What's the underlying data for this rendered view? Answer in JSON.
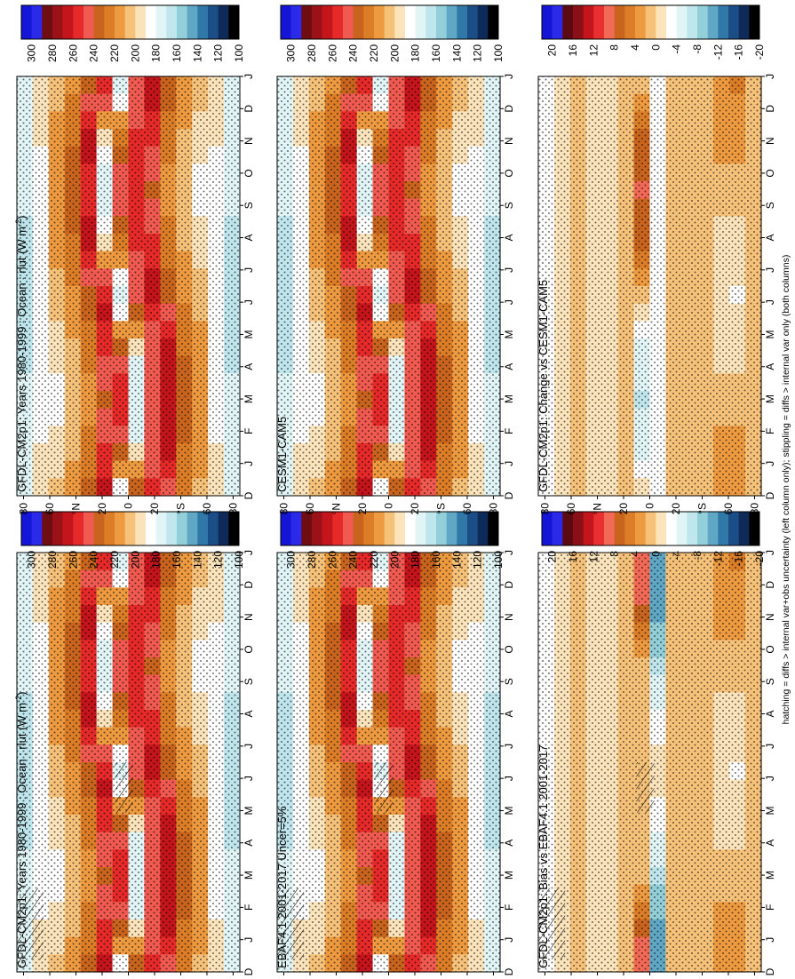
{
  "figure": {
    "footnote": "hatching = diffs > internal var+obs uncertainty (left column only); stippling = diffs > internal var only (both columns)"
  },
  "chart_data": [
    {
      "type": "heatmap",
      "title": "GFDL-CM2p1: Years 1980-1999 : Ocean : rlut (W m",
      "title_sup": "-2",
      "title_end": ")",
      "x_ticks": [
        "D",
        "J",
        "F",
        "M",
        "A",
        "M",
        "J",
        "J",
        "A",
        "S",
        "O",
        "N",
        "D",
        "J"
      ],
      "y_ticks": [
        "80",
        "60",
        "°N",
        "20",
        "0",
        "20",
        "°S",
        "60",
        "80"
      ],
      "colorbar_ticks": [
        "300",
        "280",
        "260",
        "240",
        "220",
        "200",
        "180",
        "160",
        "140",
        "120",
        "100"
      ],
      "palette": "absolute",
      "stippling": true,
      "hatching": true
    },
    {
      "type": "heatmap",
      "title": "EBAF4.1 2001-2017 Uncer=5%",
      "x_ticks": [
        "D",
        "J",
        "F",
        "M",
        "A",
        "M",
        "J",
        "J",
        "A",
        "S",
        "O",
        "N",
        "D",
        "J"
      ],
      "y_ticks": [
        "80",
        "60",
        "°N",
        "20",
        "0",
        "20",
        "°S",
        "60",
        "80"
      ],
      "colorbar_ticks": [
        "300",
        "280",
        "260",
        "240",
        "220",
        "200",
        "180",
        "160",
        "140",
        "120",
        "100"
      ],
      "palette": "absolute",
      "stippling": true,
      "hatching": true
    },
    {
      "type": "heatmap",
      "title": "GFDL-CM2p1: Bias vs EBAF4.1 2001-2017",
      "x_ticks": [
        "D",
        "J",
        "F",
        "M",
        "A",
        "M",
        "J",
        "J",
        "A",
        "S",
        "O",
        "N",
        "D",
        "J"
      ],
      "y_ticks": [
        "80",
        "60",
        "°N",
        "20",
        "0",
        "20",
        "°S",
        "60",
        "80"
      ],
      "colorbar_ticks": [
        "20",
        "16",
        "12",
        "8",
        "4",
        "0",
        "-4",
        "-8",
        "-12",
        "-16",
        "-20"
      ],
      "palette": "difference",
      "stippling": true,
      "hatching": true
    },
    {
      "type": "heatmap",
      "title": "GFDL-CM2p1: Years 1980-1999 : Ocean : rlut (W m",
      "title_sup": "-2",
      "title_end": ")",
      "x_ticks": [
        "D",
        "J",
        "F",
        "M",
        "A",
        "M",
        "J",
        "J",
        "A",
        "S",
        "O",
        "N",
        "D",
        "J"
      ],
      "y_ticks": [
        "80",
        "60",
        "°N",
        "20",
        "0",
        "20",
        "°S",
        "60",
        "80"
      ],
      "colorbar_ticks": [
        "300",
        "280",
        "260",
        "240",
        "220",
        "200",
        "180",
        "160",
        "140",
        "120",
        "100"
      ],
      "palette": "absolute",
      "stippling": true,
      "hatching": false
    },
    {
      "type": "heatmap",
      "title": "CESM1-CAM5",
      "x_ticks": [
        "D",
        "J",
        "F",
        "M",
        "A",
        "M",
        "J",
        "J",
        "A",
        "S",
        "O",
        "N",
        "D",
        "J"
      ],
      "y_ticks": [
        "80",
        "60",
        "°N",
        "20",
        "0",
        "20",
        "°S",
        "60",
        "80"
      ],
      "colorbar_ticks": [
        "300",
        "280",
        "260",
        "240",
        "220",
        "200",
        "180",
        "160",
        "140",
        "120",
        "100"
      ],
      "palette": "absolute",
      "stippling": true,
      "hatching": false
    },
    {
      "type": "heatmap",
      "title": "GFDL-CM2p1: Change vs CESM1-CAM5",
      "x_ticks": [
        "D",
        "J",
        "F",
        "M",
        "A",
        "M",
        "J",
        "J",
        "A",
        "S",
        "O",
        "N",
        "D",
        "J"
      ],
      "y_ticks": [
        "80",
        "60",
        "°N",
        "20",
        "0",
        "20",
        "°S",
        "60",
        "80"
      ],
      "colorbar_ticks": [
        "20",
        "16",
        "12",
        "8",
        "4",
        "0",
        "-4",
        "-8",
        "-12",
        "-16",
        "-20"
      ],
      "palette": "difference",
      "stippling": true,
      "hatching": false
    }
  ],
  "palettes": {
    "absolute": [
      "#1515d8",
      "#2a2ae8",
      "#6e0e12",
      "#9a1118",
      "#c4141c",
      "#e62a2a",
      "#f05a50",
      "#c8641e",
      "#dc7d28",
      "#ee9a40",
      "#f6c27a",
      "#fbe3bb",
      "#ffffff",
      "#e2f5f6",
      "#bfe6ec",
      "#92cfd9",
      "#5fa7c4",
      "#2f78a8",
      "#1b4d86",
      "#0e2a58",
      "#000000"
    ],
    "difference": [
      "#1515d8",
      "#2a2ae8",
      "#5a0a10",
      "#8a0f16",
      "#c4141c",
      "#e83030",
      "#f26a56",
      "#c8641e",
      "#dc7d28",
      "#ee9a40",
      "#f6c27a",
      "#fbe3bb",
      "#ffffff",
      "#e2f5f6",
      "#bfe6ec",
      "#92cfd9",
      "#5fa7c4",
      "#2f78a8",
      "#1b4d86",
      "#0e2a58",
      "#000000"
    ]
  }
}
